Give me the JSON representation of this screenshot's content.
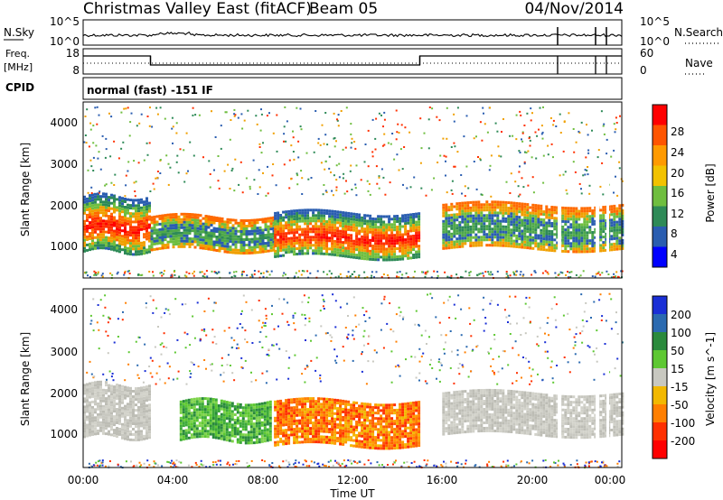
{
  "header": {
    "title": "Christmas Valley East (fitACF)",
    "beam": "Beam 05",
    "date": "04/Nov/2014"
  },
  "nsky_panel": {
    "left_label": "N.Sky",
    "left_ticks": [
      "10^5",
      "10^0"
    ],
    "right_label": "N.Search",
    "right_ticks": [
      "10^5",
      "10^0"
    ]
  },
  "freq_panel": {
    "left_label_line1": "Freq.",
    "left_label_line2": "[MHz]",
    "left_ticks": [
      "18",
      "8"
    ],
    "right_label": "Nave",
    "right_ticks": [
      "60",
      "0"
    ]
  },
  "cpid": {
    "label": "CPID",
    "value": "normal (fast) -151 IF"
  },
  "axes": {
    "y_label": "Slant Range [km]",
    "y_ticks": [
      "4000",
      "3000",
      "2000",
      "1000"
    ],
    "x_label": "Time UT",
    "x_ticks": [
      "00:00",
      "04:00",
      "08:00",
      "12:00",
      "16:00",
      "20:00",
      "00:00"
    ]
  },
  "power_colorbar": {
    "label": "Power [dB]",
    "ticks": [
      "28",
      "24",
      "20",
      "16",
      "12",
      "8",
      "4"
    ],
    "colors": [
      "#ff0000",
      "#ff5500",
      "#ff9a00",
      "#f2c200",
      "#6fbe3f",
      "#2e8a57",
      "#2a5db0",
      "#0000ff"
    ]
  },
  "velocity_colorbar": {
    "label": "Velocity [m s^-1]",
    "ticks": [
      "200",
      "100",
      "50",
      "15",
      "-15",
      "-50",
      "-100",
      "-200"
    ],
    "colors": [
      "#1a2fd6",
      "#2b6ab0",
      "#2a8a3c",
      "#5ec832",
      "#c8c8c0",
      "#f2b800",
      "#ff7f00",
      "#ff3000",
      "#ff0000"
    ]
  },
  "chart_data": {
    "type": "heatmap",
    "x_range_hours": [
      0,
      24
    ],
    "y_range_km": [
      180,
      4500
    ],
    "power_bands": [
      {
        "t0": 0.0,
        "t1": 3.0,
        "r0": 850,
        "r1": 2200,
        "level": "high"
      },
      {
        "t0": 3.0,
        "t1": 8.5,
        "r0": 900,
        "r1": 1700,
        "level": "medium"
      },
      {
        "t0": 8.5,
        "t1": 15.0,
        "r0": 700,
        "r1": 1800,
        "level": "high"
      },
      {
        "t0": 16.0,
        "t1": 24.0,
        "r0": 900,
        "r1": 2000,
        "level": "medium"
      }
    ],
    "velocity_bands": [
      {
        "t0": 0.0,
        "t1": 3.0,
        "r0": 900,
        "r1": 2200,
        "class": "ground"
      },
      {
        "t0": 4.3,
        "t1": 8.3,
        "r0": 850,
        "r1": 1800,
        "class": "positive"
      },
      {
        "t0": 8.5,
        "t1": 15.0,
        "r0": 700,
        "r1": 1800,
        "class": "negative"
      },
      {
        "t0": 16.0,
        "t1": 24.0,
        "r0": 1000,
        "r1": 2000,
        "class": "ground"
      }
    ]
  }
}
